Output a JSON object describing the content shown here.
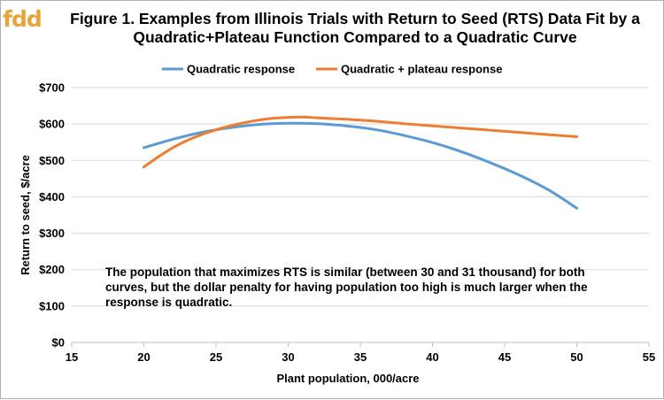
{
  "logo": {
    "text": "fdd"
  },
  "chart_data": {
    "type": "line",
    "title_line1": "Figure 1. Examples from Illinois Trials with Return to Seed (RTS) Data Fit by a",
    "title_line2": "Quadratic+Plateau Function Compared to a Quadratic Curve",
    "xlabel": "Plant population, 000/acre",
    "ylabel": "Return to seed, $/acre",
    "xlim": [
      15,
      55
    ],
    "ylim": [
      0,
      700
    ],
    "x_ticks": [
      "15",
      "20",
      "25",
      "30",
      "35",
      "40",
      "45",
      "50",
      "55"
    ],
    "y_ticks": [
      "$0",
      "$100",
      "$200",
      "$300",
      "$400",
      "$500",
      "$600",
      "$700"
    ],
    "grid": "horizontal",
    "legend_position": "top",
    "series": [
      {
        "name": "Quadratic response",
        "color": "#5b9bd5",
        "x": [
          20,
          22,
          24,
          26,
          28,
          30,
          32,
          34,
          36,
          38,
          40,
          42,
          44,
          46,
          48,
          50
        ],
        "y": [
          535,
          558,
          577,
          590,
          599,
          602,
          601,
          595,
          585,
          569,
          549,
          524,
          494,
          460,
          420,
          369
        ]
      },
      {
        "name": "Quadratic + plateau response",
        "color": "#ed7d31",
        "x": [
          20,
          21,
          22,
          23,
          24,
          25,
          26,
          27,
          28,
          29,
          30,
          31,
          32,
          34,
          36,
          38,
          40,
          42,
          44,
          46,
          48,
          50
        ],
        "y": [
          482,
          510,
          535,
          555,
          571,
          584,
          595,
          604,
          611,
          616,
          618,
          619,
          617,
          613,
          608,
          601,
          595,
          589,
          583,
          577,
          571,
          565
        ]
      }
    ],
    "annotation": "The population that maximizes RTS is similar (between 30 and 31 thousand) for both curves, but the dollar penalty for having population too high is much larger when the response is quadratic."
  }
}
